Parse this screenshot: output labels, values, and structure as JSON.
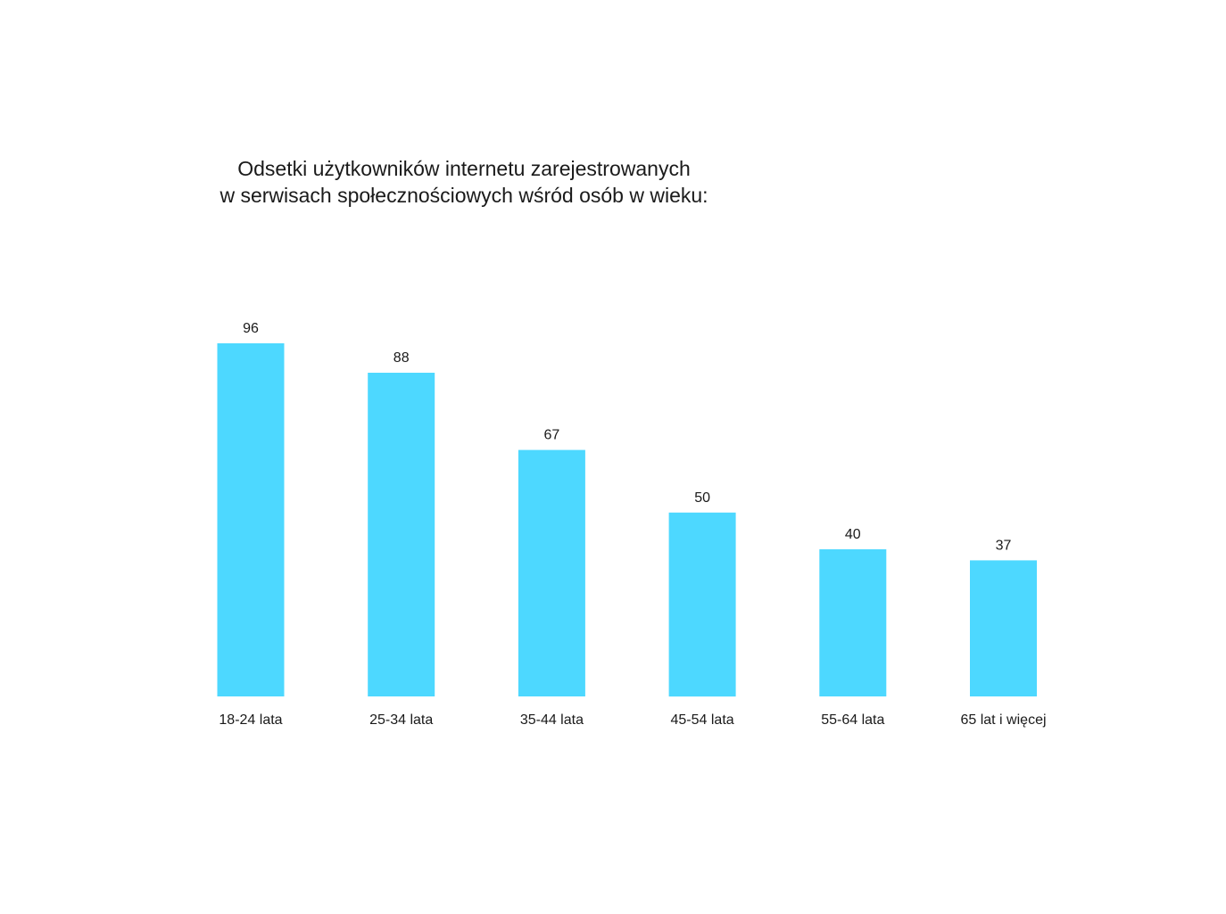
{
  "chart_data": {
    "type": "bar",
    "title_lines": [
      "Odsetki użytkowników internetu zarejestrowanych",
      "w serwisach społecznościowych wśród osób w wieku:"
    ],
    "categories": [
      "18-24 lata",
      "25-34 lata",
      "35-44 lata",
      "45-54 lata",
      "55-64 lata",
      "65 lat i więcej"
    ],
    "values": [
      96,
      88,
      67,
      50,
      40,
      37
    ],
    "ylim": [
      0,
      100
    ],
    "grid": false,
    "legend": "none",
    "bar_color": "#4dd8ff"
  }
}
